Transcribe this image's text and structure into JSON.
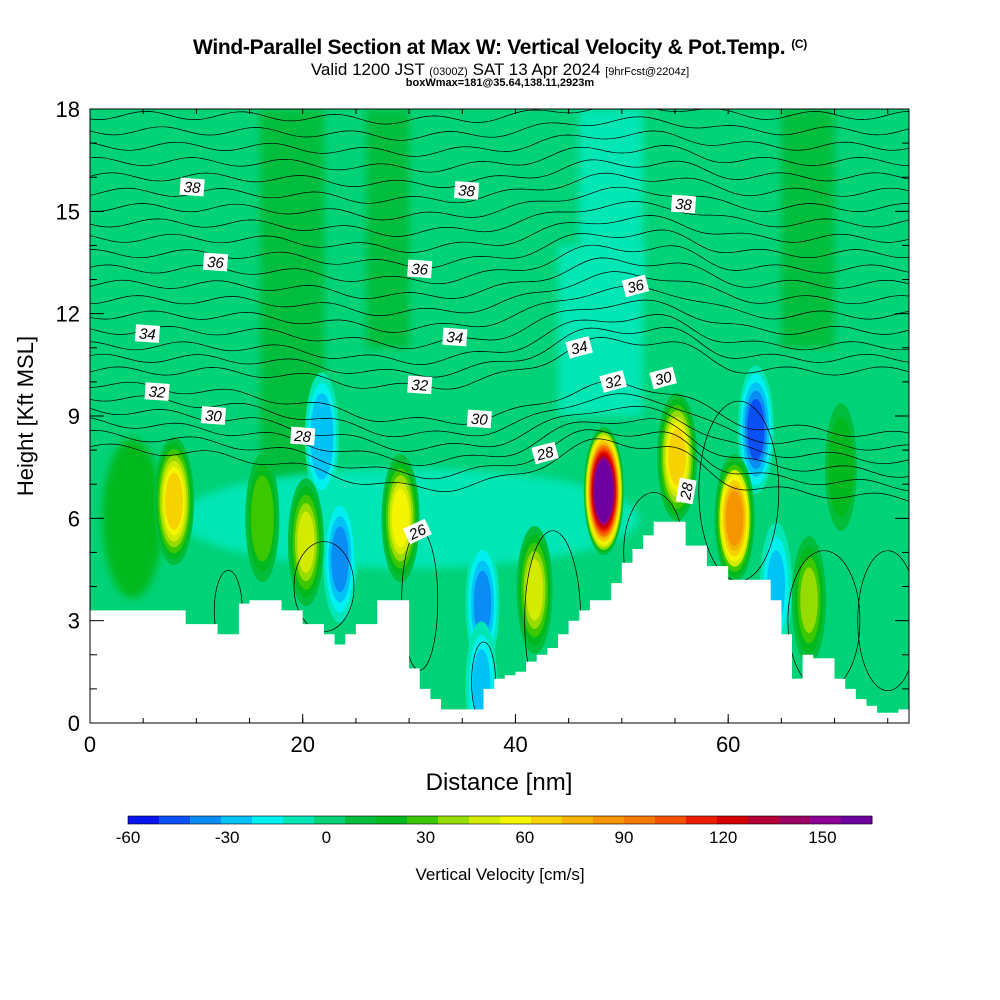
{
  "header": {
    "title": "Wind-Parallel Section at Max W: Vertical Velocity & Pot.Temp.",
    "copyright": "(C)",
    "valid_prefix": "Valid 1200 JST",
    "valid_utc": "(0300Z)",
    "valid_date": "SAT 13 Apr 2024",
    "forecast": "[9hrFcst@2204z]",
    "box_info": "boxWmax=181@35.64,138.11,2923m"
  },
  "chart_data": {
    "type": "heatmap",
    "xlabel": "Distance [nm]",
    "ylabel": "Height [Kft MSL]",
    "xlim": [
      0,
      77
    ],
    "ylim": [
      0,
      18
    ],
    "x_ticks": [
      "0",
      "20",
      "40",
      "60"
    ],
    "x_tick_values": [
      0,
      20,
      40,
      60
    ],
    "y_ticks": [
      "0",
      "3",
      "6",
      "9",
      "12",
      "15",
      "18"
    ],
    "y_tick_values": [
      0,
      3,
      6,
      9,
      12,
      15,
      18
    ],
    "colorbar": {
      "label": "Vertical Velocity [cm/s]",
      "tick_labels": [
        "-60",
        "-30",
        "0",
        "30",
        "60",
        "90",
        "120",
        "150"
      ],
      "tick_values": [
        -60,
        -30,
        0,
        30,
        60,
        90,
        120,
        150
      ],
      "range": [
        -60,
        165
      ],
      "colors": [
        "#0a14f0",
        "#0a50f5",
        "#0a8cf5",
        "#00c3f5",
        "#00f0f0",
        "#00e6b4",
        "#00d278",
        "#00be3c",
        "#00b91e",
        "#3cc800",
        "#96dc00",
        "#d2eb00",
        "#f5f500",
        "#f5d200",
        "#f5b400",
        "#f59600",
        "#f57800",
        "#f55000",
        "#eb1e00",
        "#d20000",
        "#b40032",
        "#9b0064",
        "#8c0096",
        "#6e00a0"
      ]
    },
    "terrain": {
      "distance_nm": [
        0,
        8.5,
        9,
        12,
        14,
        15,
        18,
        20,
        22,
        23,
        24,
        25,
        27,
        30,
        31,
        32,
        33,
        34,
        37,
        38,
        39,
        40,
        41,
        42,
        43,
        44,
        45,
        46,
        47,
        49,
        50,
        51,
        52,
        53,
        54,
        56,
        57,
        58,
        60,
        62,
        64,
        65,
        66,
        67,
        68,
        70,
        71,
        72,
        73,
        74,
        75,
        76,
        77
      ],
      "height_kft": [
        3.3,
        3.3,
        2.9,
        2.6,
        3.5,
        3.6,
        3.3,
        2.9,
        2.6,
        2.3,
        2.6,
        2.9,
        3.6,
        1.6,
        1.0,
        0.7,
        0.4,
        0.4,
        1.0,
        1.3,
        1.4,
        1.5,
        1.8,
        2.0,
        2.2,
        2.6,
        3.0,
        3.3,
        3.6,
        4.1,
        4.7,
        5.1,
        5.5,
        5.9,
        5.9,
        5.2,
        5.2,
        4.6,
        4.2,
        4.2,
        3.6,
        2.6,
        1.3,
        2.0,
        1.9,
        1.3,
        1.0,
        0.7,
        0.5,
        0.3,
        0.3,
        0.4,
        0.4
      ]
    },
    "updrafts": [
      {
        "x_nm": 7.9,
        "z_kft": 6.5,
        "w_cms": 68
      },
      {
        "x_nm": 16.2,
        "z_kft": 6.0,
        "w_cms": 32
      },
      {
        "x_nm": 20.3,
        "z_kft": 5.3,
        "w_cms": 50
      },
      {
        "x_nm": 29.2,
        "z_kft": 6.0,
        "w_cms": 58
      },
      {
        "x_nm": 41.8,
        "z_kft": 3.9,
        "w_cms": 45
      },
      {
        "x_nm": 48.3,
        "z_kft": 6.8,
        "w_cms": 181
      },
      {
        "x_nm": 55.2,
        "z_kft": 7.8,
        "w_cms": 70
      },
      {
        "x_nm": 60.6,
        "z_kft": 6.0,
        "w_cms": 88
      },
      {
        "x_nm": 67.6,
        "z_kft": 3.6,
        "w_cms": 38
      },
      {
        "x_nm": 70.6,
        "z_kft": 7.5,
        "w_cms": 22
      }
    ],
    "downdrafts": [
      {
        "x_nm": 36.9,
        "z_kft": 3.5,
        "w_cms": -40
      },
      {
        "x_nm": 62.6,
        "z_kft": 8.6,
        "w_cms": -45
      },
      {
        "x_nm": 23.5,
        "z_kft": 4.8,
        "w_cms": -35
      },
      {
        "x_nm": 21.8,
        "z_kft": 8.4,
        "w_cms": -30
      },
      {
        "x_nm": 36.8,
        "z_kft": 1.1,
        "w_cms": -28
      },
      {
        "x_nm": 64.5,
        "z_kft": 4.0,
        "w_cms": -25
      }
    ],
    "isentrope_labels": [
      {
        "text": "38",
        "x_nm": 9.6,
        "z_kft": 15.7
      },
      {
        "text": "38",
        "x_nm": 35.4,
        "z_kft": 15.6
      },
      {
        "text": "38",
        "x_nm": 55.8,
        "z_kft": 15.2
      },
      {
        "text": "36",
        "x_nm": 11.8,
        "z_kft": 13.5
      },
      {
        "text": "36",
        "x_nm": 31.0,
        "z_kft": 13.3
      },
      {
        "text": "36",
        "x_nm": 51.3,
        "z_kft": 12.8
      },
      {
        "text": "34",
        "x_nm": 5.4,
        "z_kft": 11.4
      },
      {
        "text": "34",
        "x_nm": 34.3,
        "z_kft": 11.3
      },
      {
        "text": "34",
        "x_nm": 46.0,
        "z_kft": 11.0
      },
      {
        "text": "32",
        "x_nm": 6.3,
        "z_kft": 9.7
      },
      {
        "text": "32",
        "x_nm": 31.0,
        "z_kft": 9.9
      },
      {
        "text": "32",
        "x_nm": 49.2,
        "z_kft": 10.0
      },
      {
        "text": "30",
        "x_nm": 11.6,
        "z_kft": 9.0
      },
      {
        "text": "30",
        "x_nm": 36.6,
        "z_kft": 8.9
      },
      {
        "text": "30",
        "x_nm": 53.9,
        "z_kft": 10.1
      },
      {
        "text": "28",
        "x_nm": 20.0,
        "z_kft": 8.4
      },
      {
        "text": "28",
        "x_nm": 42.8,
        "z_kft": 7.9
      },
      {
        "text": "28",
        "x_nm": 56.1,
        "z_kft": 6.8
      },
      {
        "text": "26",
        "x_nm": 30.8,
        "z_kft": 5.6
      }
    ]
  }
}
